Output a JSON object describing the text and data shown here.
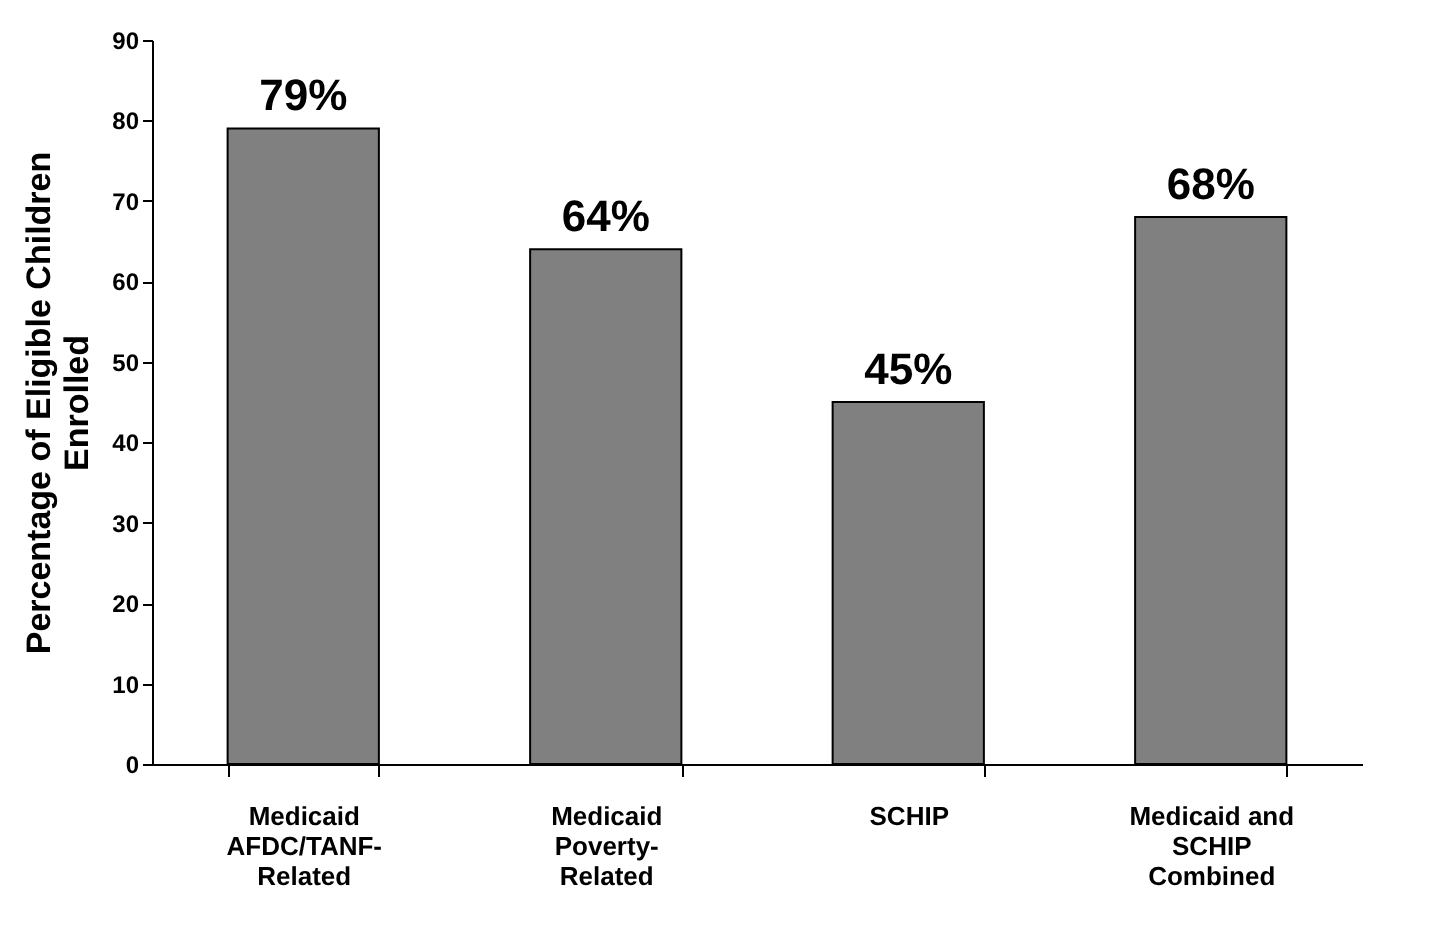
{
  "chart_data": {
    "type": "bar",
    "ylabel": "Percentage of Eligible Children Enrolled",
    "categories": [
      "Medicaid AFDC/TANF-Related",
      "Medicaid Poverty-Related",
      "SCHIP",
      "Medicaid and SCHIP Combined"
    ],
    "values": [
      79,
      64,
      45,
      68
    ],
    "value_labels": [
      "79%",
      "64%",
      "45%",
      "68%"
    ],
    "color": "#808080",
    "ylim": [
      0,
      90
    ],
    "yticks": [
      0,
      10,
      20,
      30,
      40,
      50,
      60,
      70,
      80,
      90
    ],
    "grid": false
  }
}
